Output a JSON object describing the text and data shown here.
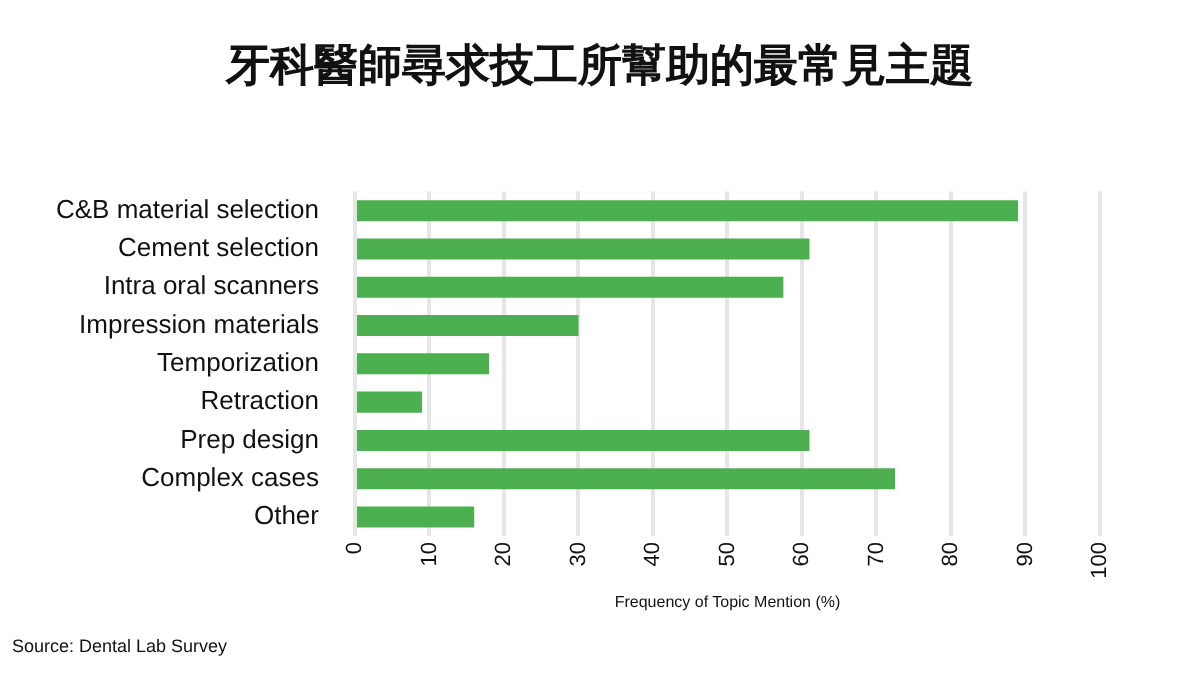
{
  "chart_data": {
    "type": "bar",
    "orientation": "horizontal",
    "title": "牙科醫師尋求技工所幫助的最常見主題",
    "xlabel": "Frequency of Topic Mention (%)",
    "categories": [
      "C&B material selection",
      "Cement selection",
      "Intra oral scanners",
      "Impression materials",
      "Temporization",
      "Retraction",
      "Prep design",
      "Complex cases",
      "Other"
    ],
    "values": [
      89,
      61,
      57.5,
      30,
      18,
      9,
      61,
      72.5,
      16
    ],
    "color": "#4caf50",
    "xlim": [
      0,
      100
    ],
    "xticks": [
      0,
      10,
      20,
      30,
      40,
      50,
      60,
      70,
      80,
      90,
      100
    ],
    "grid": "x",
    "annotations": [
      "Source: Dental Lab Survey"
    ]
  }
}
